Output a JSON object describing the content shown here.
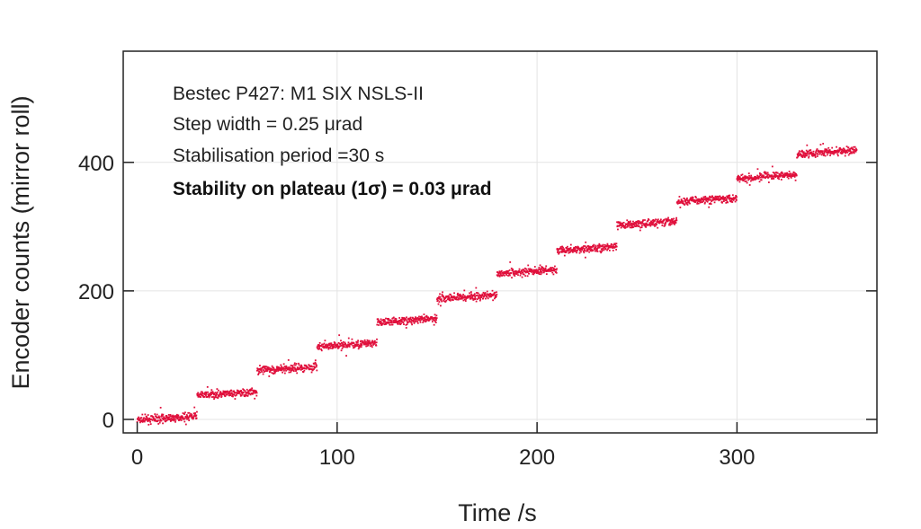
{
  "chart_data": {
    "type": "scatter",
    "title": "",
    "xlabel": "Time /s",
    "ylabel": "Encoder counts (mirror roll)",
    "xlim": [
      -7,
      370
    ],
    "ylim": [
      -21,
      573
    ],
    "xticks": [
      0,
      100,
      200,
      300
    ],
    "yticks": [
      0,
      200,
      400
    ],
    "grid": true,
    "legend": "none",
    "annotations": [
      "Bestec P427: M1 SIX NSLS-II",
      "Step width = 0.25 μrad",
      "Stabilisation period =30 s",
      "Stability on plateau (1σ) = 0.03 μrad"
    ],
    "series": [
      {
        "name": "encoder counts",
        "color": "#e0103c",
        "plateaus": [
          {
            "t_start": 0,
            "t_end": 30,
            "counts": 2
          },
          {
            "t_start": 30,
            "t_end": 60,
            "counts": 40
          },
          {
            "t_start": 60,
            "t_end": 90,
            "counts": 79
          },
          {
            "t_start": 90,
            "t_end": 120,
            "counts": 116
          },
          {
            "t_start": 120,
            "t_end": 150,
            "counts": 154
          },
          {
            "t_start": 150,
            "t_end": 180,
            "counts": 191
          },
          {
            "t_start": 180,
            "t_end": 210,
            "counts": 230
          },
          {
            "t_start": 210,
            "t_end": 240,
            "counts": 266
          },
          {
            "t_start": 240,
            "t_end": 270,
            "counts": 305
          },
          {
            "t_start": 270,
            "t_end": 300,
            "counts": 342
          },
          {
            "t_start": 300,
            "t_end": 330,
            "counts": 378
          },
          {
            "t_start": 330,
            "t_end": 360,
            "counts": 416
          }
        ],
        "noise_sigma_counts": 3
      }
    ]
  }
}
